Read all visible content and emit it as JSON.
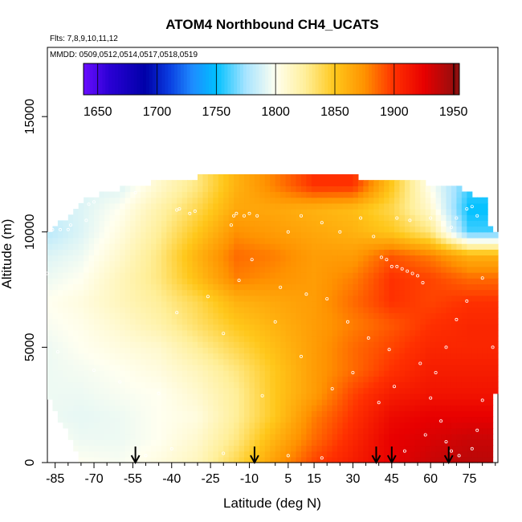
{
  "chart_data": {
    "type": "heatmap",
    "title": "ATOM4 Northbound CH4_UCATS",
    "flights_label": "Flts: 7,8,9,10,11,12",
    "dates_label": "MMDD: 0509,0512,0514,0517,0518,0519",
    "xlabel": "Latitude (deg N)",
    "ylabel": "Altitude (m)",
    "xlim": [
      -88,
      86
    ],
    "ylim": [
      0,
      18000
    ],
    "x_ticks": [
      -85,
      -70,
      -55,
      -40,
      -25,
      -10,
      5,
      15,
      30,
      45,
      60,
      75
    ],
    "x_minor_ticks": [
      -80,
      -75,
      -65,
      -60,
      -50,
      -45,
      -35,
      -30,
      -20,
      -15,
      0,
      10,
      20,
      25,
      35,
      40,
      50,
      55,
      65,
      70,
      80,
      85
    ],
    "y_ticks": [
      0,
      5000,
      10000,
      15000
    ],
    "grid": false,
    "colorbar": {
      "ticks": [
        1650,
        1700,
        1750,
        1800,
        1850,
        1900,
        1950
      ],
      "min": 1638,
      "max": 1955,
      "stops": [
        [
          1638,
          "#6a0dff"
        ],
        [
          1660,
          "#2a00d4"
        ],
        [
          1690,
          "#0000a8"
        ],
        [
          1710,
          "#0a3ce0"
        ],
        [
          1730,
          "#1e8cff"
        ],
        [
          1750,
          "#00c0ff"
        ],
        [
          1775,
          "#a8e4ff"
        ],
        [
          1800,
          "#fffff0"
        ],
        [
          1825,
          "#ffef9a"
        ],
        [
          1850,
          "#ffc71a"
        ],
        [
          1875,
          "#ff9200"
        ],
        [
          1900,
          "#ff3000"
        ],
        [
          1925,
          "#e80000"
        ],
        [
          1955,
          "#8a1010"
        ]
      ]
    },
    "arrow_latitudes": [
      -54,
      -8,
      39,
      45,
      67
    ],
    "grid_x": [
      -88,
      -75,
      -60,
      -45,
      -30,
      -15,
      0,
      15,
      30,
      45,
      60,
      75,
      86
    ],
    "grid_y": [
      0,
      1000,
      2000,
      3000,
      4000,
      5000,
      6000,
      7000,
      8000,
      9000,
      10000,
      11000,
      12000
    ],
    "grid_values": [
      [
        1805,
        1800,
        1798,
        1805,
        1815,
        1840,
        1870,
        1895,
        1910,
        1925,
        1935,
        1940,
        1940
      ],
      [
        1800,
        1795,
        1795,
        1800,
        1810,
        1830,
        1860,
        1885,
        1905,
        1925,
        1930,
        1935,
        1935
      ],
      [
        1795,
        1793,
        1795,
        1800,
        1805,
        1825,
        1850,
        1880,
        1900,
        1920,
        1925,
        1925,
        1925
      ],
      [
        1795,
        1795,
        1798,
        1800,
        1810,
        1825,
        1850,
        1870,
        1895,
        1910,
        1915,
        1915,
        1915
      ],
      [
        1795,
        1797,
        1800,
        1805,
        1815,
        1830,
        1850,
        1870,
        1885,
        1900,
        1910,
        1910,
        1910
      ],
      [
        1795,
        1800,
        1805,
        1810,
        1825,
        1840,
        1855,
        1870,
        1885,
        1895,
        1905,
        1905,
        1905
      ],
      [
        1798,
        1802,
        1810,
        1820,
        1835,
        1850,
        1860,
        1870,
        1880,
        1890,
        1900,
        1905,
        1905
      ],
      [
        1800,
        1805,
        1815,
        1825,
        1840,
        1860,
        1865,
        1870,
        1885,
        1900,
        1895,
        1900,
        1900
      ],
      [
        1795,
        1800,
        1815,
        1830,
        1855,
        1880,
        1875,
        1870,
        1880,
        1900,
        1895,
        1885,
        1885
      ],
      [
        1790,
        1795,
        1810,
        1830,
        1860,
        1885,
        1880,
        1870,
        1870,
        1890,
        1880,
        1860,
        1860
      ],
      [
        1780,
        1790,
        1805,
        1825,
        1850,
        1875,
        1870,
        1865,
        1860,
        1850,
        1830,
        1760,
        1760
      ],
      [
        1785,
        1790,
        1800,
        1820,
        1840,
        1865,
        1865,
        1860,
        1855,
        1840,
        1810,
        1750,
        1750
      ],
      [
        1790,
        1790,
        1790,
        1810,
        1830,
        1860,
        1880,
        1900,
        1900,
        1850,
        1800,
        1760,
        1760
      ]
    ],
    "profile_bands": [
      {
        "alt": 0,
        "xmin": -75,
        "xmax": 84
      },
      {
        "alt": 3000,
        "xmin": -88,
        "xmax": 85
      },
      {
        "alt": 10000,
        "xmin": -88,
        "xmax": 85
      },
      {
        "alt": 10500,
        "xmin": -82,
        "xmax": 82
      },
      {
        "alt": 11400,
        "xmin": -73,
        "xmax": 81
      },
      {
        "alt": 12000,
        "xmin": -57,
        "xmax": 70
      },
      {
        "alt": 12500,
        "xmin": -21,
        "xmax": 20
      }
    ],
    "sample_points": [
      [
        -86,
        10100
      ],
      [
        -83,
        10100
      ],
      [
        -80,
        10100
      ],
      [
        -79,
        10300
      ],
      [
        -73,
        10500
      ],
      [
        -72,
        11200
      ],
      [
        -70,
        11300
      ],
      [
        -54,
        11700
      ],
      [
        -38,
        10950
      ],
      [
        -37,
        11000
      ],
      [
        -33,
        10800
      ],
      [
        -31,
        10900
      ],
      [
        -17,
        10300
      ],
      [
        -16,
        10700
      ],
      [
        -15,
        10800
      ],
      [
        -12,
        10700
      ],
      [
        -10,
        10800
      ],
      [
        -7,
        10700
      ],
      [
        5,
        10000
      ],
      [
        10,
        10700
      ],
      [
        18,
        10400
      ],
      [
        25,
        10000
      ],
      [
        33,
        10600
      ],
      [
        38,
        9800
      ],
      [
        47,
        10600
      ],
      [
        52,
        10500
      ],
      [
        60,
        10600
      ],
      [
        68,
        10200
      ],
      [
        70,
        10600
      ],
      [
        74,
        11000
      ],
      [
        76,
        11100
      ],
      [
        78,
        10700
      ],
      [
        41,
        8900
      ],
      [
        43,
        8800
      ],
      [
        45,
        8500
      ],
      [
        47,
        8500
      ],
      [
        49,
        8400
      ],
      [
        51,
        8300
      ],
      [
        53,
        8200
      ],
      [
        55,
        8100
      ],
      [
        57,
        7800
      ],
      [
        -9,
        8800
      ],
      [
        -14,
        7900
      ],
      [
        2,
        7600
      ],
      [
        12,
        7300
      ],
      [
        20,
        7100
      ],
      [
        28,
        6100
      ],
      [
        36,
        5400
      ],
      [
        44,
        4900
      ],
      [
        56,
        4300
      ],
      [
        62,
        3900
      ],
      [
        66,
        5000
      ],
      [
        70,
        6200
      ],
      [
        74,
        7000
      ],
      [
        80,
        8000
      ],
      [
        84,
        5000
      ],
      [
        -88,
        8200
      ],
      [
        -84,
        4800
      ],
      [
        -70,
        4000
      ],
      [
        -60,
        3500
      ],
      [
        -45,
        3000
      ],
      [
        -38,
        6500
      ],
      [
        -26,
        7200
      ],
      [
        -20,
        5600
      ],
      [
        -5,
        2900
      ],
      [
        0,
        6100
      ],
      [
        10,
        4600
      ],
      [
        22,
        3200
      ],
      [
        30,
        3900
      ],
      [
        40,
        2600
      ],
      [
        46,
        3300
      ],
      [
        60,
        2800
      ],
      [
        64,
        1800
      ],
      [
        66,
        900
      ],
      [
        68,
        500
      ],
      [
        71,
        300
      ],
      [
        76,
        600
      ],
      [
        78,
        1400
      ],
      [
        80,
        2700
      ],
      [
        58,
        1200
      ],
      [
        50,
        500
      ],
      [
        18,
        200
      ],
      [
        5,
        300
      ],
      [
        -20,
        400
      ],
      [
        -40,
        600
      ],
      [
        -50,
        300
      ]
    ]
  }
}
